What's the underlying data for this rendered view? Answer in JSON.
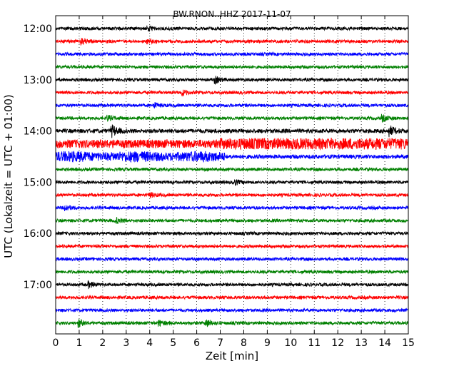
{
  "chart_data": {
    "type": "line",
    "title": "BW.RNON..HHZ 2017-11-07",
    "xlabel": "Zeit  [min]",
    "ylabel": "UTC (Lokalzeit = UTC + 01:00)",
    "xlim": [
      0,
      15
    ],
    "x_ticks": [
      "0",
      "1",
      "2",
      "3",
      "4",
      "5",
      "6",
      "7",
      "8",
      "9",
      "10",
      "11",
      "12",
      "13",
      "14",
      "15"
    ],
    "y_tick_labels": [
      "12:00",
      "13:00",
      "14:00",
      "15:00",
      "16:00",
      "17:00"
    ],
    "grid": "vertical dotted lines at each minute",
    "trace_colors": [
      "#000000",
      "#ff0000",
      "#0000ff",
      "#008000"
    ],
    "series": [
      {
        "start": "12:00",
        "amplitude": 1.0,
        "events": [
          {
            "t": 3.9,
            "amp": 1.6
          }
        ]
      },
      {
        "start": "12:15",
        "amplitude": 1.0,
        "events": [
          {
            "t": 1.1,
            "amp": 2.0
          },
          {
            "t": 3.9,
            "amp": 1.4
          }
        ]
      },
      {
        "start": "12:30",
        "amplitude": 1.0,
        "events": []
      },
      {
        "start": "12:45",
        "amplitude": 1.0,
        "events": []
      },
      {
        "start": "13:00",
        "amplitude": 1.0,
        "events": [
          {
            "t": 6.8,
            "amp": 1.8
          }
        ]
      },
      {
        "start": "13:15",
        "amplitude": 1.0,
        "events": [
          {
            "t": 5.4,
            "amp": 1.6
          }
        ]
      },
      {
        "start": "13:30",
        "amplitude": 1.0,
        "events": [
          {
            "t": 4.2,
            "amp": 1.4
          }
        ]
      },
      {
        "start": "13:45",
        "amplitude": 1.0,
        "events": [
          {
            "t": 2.2,
            "amp": 1.6
          },
          {
            "t": 13.9,
            "amp": 1.8
          }
        ]
      },
      {
        "start": "14:00",
        "amplitude": 1.3,
        "events": [
          {
            "t": 2.4,
            "amp": 3.2
          },
          {
            "t": 14.2,
            "amp": 3.0
          }
        ]
      },
      {
        "start": "14:15",
        "amplitude": 3.2,
        "events": []
      },
      {
        "start": "14:30",
        "amplitude": 3.0,
        "events": []
      },
      {
        "start": "14:45",
        "amplitude": 1.0,
        "events": []
      },
      {
        "start": "15:00",
        "amplitude": 1.0,
        "events": [
          {
            "t": 7.6,
            "amp": 1.6
          }
        ]
      },
      {
        "start": "15:15",
        "amplitude": 1.0,
        "events": [
          {
            "t": 4.0,
            "amp": 1.4
          }
        ]
      },
      {
        "start": "15:30",
        "amplitude": 1.0,
        "events": [
          {
            "t": 0.4,
            "amp": 2.0
          }
        ]
      },
      {
        "start": "15:45",
        "amplitude": 1.0,
        "events": [
          {
            "t": 2.6,
            "amp": 1.4
          }
        ]
      },
      {
        "start": "16:00",
        "amplitude": 1.0,
        "events": []
      },
      {
        "start": "16:15",
        "amplitude": 1.0,
        "events": []
      },
      {
        "start": "16:30",
        "amplitude": 1.0,
        "events": []
      },
      {
        "start": "16:45",
        "amplitude": 1.0,
        "events": []
      },
      {
        "start": "17:00",
        "amplitude": 1.0,
        "events": [
          {
            "t": 1.4,
            "amp": 1.8
          }
        ]
      },
      {
        "start": "17:15",
        "amplitude": 1.0,
        "events": []
      },
      {
        "start": "17:30",
        "amplitude": 1.0,
        "events": []
      },
      {
        "start": "17:45",
        "amplitude": 1.0,
        "events": [
          {
            "t": 1.0,
            "amp": 2.0
          },
          {
            "t": 4.4,
            "amp": 1.6
          },
          {
            "t": 6.4,
            "amp": 2.2
          }
        ]
      }
    ]
  }
}
